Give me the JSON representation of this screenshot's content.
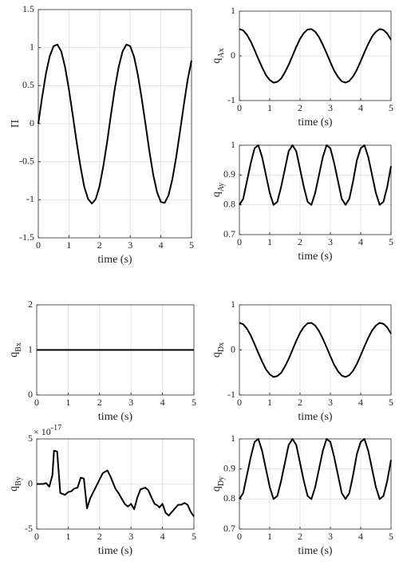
{
  "chart_data": [
    {
      "type": "line",
      "ylabel": "Π",
      "xlabel": "time (s)",
      "color": "#000000",
      "grid": true,
      "xlim": [
        0,
        5
      ],
      "ylim": [
        -1.5,
        1.5
      ],
      "xticks": [
        0,
        1,
        2,
        3,
        4,
        5
      ],
      "yticks": [
        -1.5,
        -1,
        -0.5,
        0,
        0.5,
        1,
        1.5
      ],
      "x": [
        0,
        0.125,
        0.25,
        0.375,
        0.5,
        0.625,
        0.75,
        0.875,
        1,
        1.125,
        1.25,
        1.375,
        1.5,
        1.625,
        1.75,
        1.875,
        2,
        2.125,
        2.25,
        2.375,
        2.5,
        2.625,
        2.75,
        2.875,
        3,
        3.125,
        3.25,
        3.375,
        3.5,
        3.625,
        3.75,
        3.875,
        4,
        4.125,
        4.25,
        4.375,
        4.5,
        4.625,
        4.75,
        4.875,
        5
      ],
      "values": [
        0,
        0.35,
        0.66,
        0.89,
        1.02,
        1.04,
        0.95,
        0.74,
        0.45,
        0.11,
        -0.24,
        -0.56,
        -0.83,
        -0.99,
        -1.05,
        -0.99,
        -0.82,
        -0.55,
        -0.23,
        0.13,
        0.47,
        0.75,
        0.95,
        1.04,
        1.02,
        0.88,
        0.64,
        0.33,
        -0.01,
        -0.36,
        -0.67,
        -0.9,
        -1.03,
        -1.04,
        -0.94,
        -0.73,
        -0.44,
        -0.1,
        0.25,
        0.58,
        0.83
      ]
    },
    {
      "type": "line",
      "ylabel": "q",
      "ylabel_sub": "Ax",
      "xlabel": "time (s)",
      "color": "#000000",
      "grid": true,
      "xlim": [
        0,
        5
      ],
      "ylim": [
        -1,
        1
      ],
      "xticks": [
        0,
        1,
        2,
        3,
        4,
        5
      ],
      "yticks": [
        -1,
        0,
        1
      ],
      "x": [
        0,
        0.125,
        0.25,
        0.375,
        0.5,
        0.625,
        0.75,
        0.875,
        1,
        1.125,
        1.25,
        1.375,
        1.5,
        1.625,
        1.75,
        1.875,
        2,
        2.125,
        2.25,
        2.375,
        2.5,
        2.625,
        2.75,
        2.875,
        3,
        3.125,
        3.25,
        3.375,
        3.5,
        3.625,
        3.75,
        3.875,
        4,
        4.125,
        4.25,
        4.375,
        4.5,
        4.625,
        4.75,
        4.875,
        5
      ],
      "values": [
        0.6,
        0.57,
        0.47,
        0.32,
        0.13,
        -0.07,
        -0.26,
        -0.43,
        -0.54,
        -0.6,
        -0.58,
        -0.51,
        -0.37,
        -0.2,
        0,
        0.2,
        0.38,
        0.51,
        0.59,
        0.6,
        0.54,
        0.42,
        0.25,
        0.06,
        -0.14,
        -0.33,
        -0.47,
        -0.57,
        -0.6,
        -0.56,
        -0.46,
        -0.31,
        -0.12,
        0.08,
        0.27,
        0.43,
        0.54,
        0.6,
        0.58,
        0.5,
        0.36
      ]
    },
    {
      "type": "line",
      "ylabel": "q",
      "ylabel_sub": "Ay",
      "xlabel": "time (s)",
      "color": "#000000",
      "grid": true,
      "xlim": [
        0,
        5
      ],
      "ylim": [
        0.7,
        1
      ],
      "xticks": [
        0,
        1,
        2,
        3,
        4,
        5
      ],
      "yticks": [
        0.7,
        0.8,
        0.9,
        1
      ],
      "x": [
        0,
        0.125,
        0.25,
        0.375,
        0.5,
        0.625,
        0.75,
        0.875,
        1,
        1.125,
        1.25,
        1.375,
        1.5,
        1.625,
        1.75,
        1.875,
        2,
        2.125,
        2.25,
        2.375,
        2.5,
        2.625,
        2.75,
        2.875,
        3,
        3.125,
        3.25,
        3.375,
        3.5,
        3.625,
        3.75,
        3.875,
        4,
        4.125,
        4.25,
        4.375,
        4.5,
        4.625,
        4.75,
        4.875,
        5
      ],
      "values": [
        0.8,
        0.82,
        0.88,
        0.94,
        0.99,
        1,
        0.96,
        0.9,
        0.84,
        0.8,
        0.81,
        0.86,
        0.92,
        0.98,
        1,
        0.98,
        0.92,
        0.86,
        0.81,
        0.8,
        0.84,
        0.9,
        0.96,
        1,
        0.99,
        0.94,
        0.88,
        0.82,
        0.8,
        0.82,
        0.88,
        0.95,
        0.99,
        1,
        0.96,
        0.9,
        0.84,
        0.8,
        0.81,
        0.86,
        0.93
      ]
    },
    {
      "type": "line",
      "ylabel": "q",
      "ylabel_sub": "Bx",
      "xlabel": "time (s)",
      "color": "#000000",
      "grid": true,
      "xlim": [
        0,
        5
      ],
      "ylim": [
        0,
        2
      ],
      "xticks": [
        0,
        1,
        2,
        3,
        4,
        5
      ],
      "yticks": [
        0,
        1,
        2
      ],
      "x": [
        0,
        5
      ],
      "values": [
        1,
        1
      ]
    },
    {
      "type": "line",
      "ylabel": "q",
      "ylabel_sub": "By",
      "xlabel": "time (s)",
      "color": "#000000",
      "grid": true,
      "y_multiplier": {
        "base": "× 10",
        "exponent": "-17"
      },
      "xlim": [
        0,
        5
      ],
      "ylim": [
        -5,
        5
      ],
      "xticks": [
        0,
        1,
        2,
        3,
        4,
        5
      ],
      "yticks": [
        -5,
        0,
        5
      ],
      "x": [
        0,
        0.2,
        0.3,
        0.4,
        0.5,
        0.55,
        0.65,
        0.75,
        0.9,
        1,
        1.1,
        1.2,
        1.3,
        1.4,
        1.5,
        1.6,
        1.7,
        1.9,
        2,
        2.1,
        2.25,
        2.35,
        2.5,
        2.6,
        2.7,
        2.8,
        2.9,
        3,
        3.1,
        3.2,
        3.3,
        3.45,
        3.55,
        3.65,
        3.75,
        3.85,
        3.9,
        4,
        4.1,
        4.2,
        4.3,
        4.4,
        4.5,
        4.6,
        4.7,
        4.8,
        4.9,
        5
      ],
      "values": [
        0,
        0,
        0.1,
        -0.3,
        1,
        3.7,
        3.6,
        -1,
        -1.2,
        -0.9,
        -0.8,
        -0.5,
        -0.4,
        0.7,
        0.6,
        -2.7,
        -1.6,
        -0.2,
        0.5,
        1.2,
        1.5,
        0.8,
        -0.5,
        -1,
        -1.6,
        -2.2,
        -2.5,
        -2.2,
        -2.8,
        -1.5,
        -0.6,
        -0.4,
        -0.7,
        -1.5,
        -2.2,
        -2.4,
        -2.6,
        -2.2,
        -3.2,
        -3.5,
        -3.1,
        -2.7,
        -2.3,
        -2.3,
        -2.1,
        -2.3,
        -3.1,
        -3.6
      ]
    },
    {
      "type": "line",
      "ylabel": "q",
      "ylabel_sub": "Dx",
      "xlabel": "time (s)",
      "color": "#000000",
      "grid": true,
      "xlim": [
        0,
        5
      ],
      "ylim": [
        -1,
        1
      ],
      "xticks": [
        0,
        1,
        2,
        3,
        4,
        5
      ],
      "yticks": [
        -1,
        0,
        1
      ],
      "x": [
        0,
        0.125,
        0.25,
        0.375,
        0.5,
        0.625,
        0.75,
        0.875,
        1,
        1.125,
        1.25,
        1.375,
        1.5,
        1.625,
        1.75,
        1.875,
        2,
        2.125,
        2.25,
        2.375,
        2.5,
        2.625,
        2.75,
        2.875,
        3,
        3.125,
        3.25,
        3.375,
        3.5,
        3.625,
        3.75,
        3.875,
        4,
        4.125,
        4.25,
        4.375,
        4.5,
        4.625,
        4.75,
        4.875,
        5
      ],
      "values": [
        0.6,
        0.57,
        0.47,
        0.32,
        0.13,
        -0.07,
        -0.26,
        -0.43,
        -0.54,
        -0.6,
        -0.58,
        -0.51,
        -0.37,
        -0.2,
        0,
        0.2,
        0.38,
        0.51,
        0.59,
        0.6,
        0.54,
        0.42,
        0.25,
        0.06,
        -0.14,
        -0.33,
        -0.47,
        -0.57,
        -0.6,
        -0.56,
        -0.46,
        -0.31,
        -0.12,
        0.08,
        0.27,
        0.43,
        0.54,
        0.6,
        0.58,
        0.5,
        0.36
      ]
    },
    {
      "type": "line",
      "ylabel": "q",
      "ylabel_sub": "Dy",
      "xlabel": "time (s)",
      "color": "#000000",
      "grid": true,
      "xlim": [
        0,
        5
      ],
      "ylim": [
        0.7,
        1
      ],
      "xticks": [
        0,
        1,
        2,
        3,
        4,
        5
      ],
      "yticks": [
        0.7,
        0.8,
        0.9,
        1
      ],
      "x": [
        0,
        0.125,
        0.25,
        0.375,
        0.5,
        0.625,
        0.75,
        0.875,
        1,
        1.125,
        1.25,
        1.375,
        1.5,
        1.625,
        1.75,
        1.875,
        2,
        2.125,
        2.25,
        2.375,
        2.5,
        2.625,
        2.75,
        2.875,
        3,
        3.125,
        3.25,
        3.375,
        3.5,
        3.625,
        3.75,
        3.875,
        4,
        4.125,
        4.25,
        4.375,
        4.5,
        4.625,
        4.75,
        4.875,
        5
      ],
      "values": [
        0.8,
        0.82,
        0.88,
        0.94,
        0.99,
        1,
        0.96,
        0.9,
        0.84,
        0.8,
        0.81,
        0.86,
        0.92,
        0.98,
        1,
        0.98,
        0.92,
        0.86,
        0.81,
        0.8,
        0.84,
        0.9,
        0.96,
        1,
        0.99,
        0.94,
        0.88,
        0.82,
        0.8,
        0.82,
        0.88,
        0.95,
        0.99,
        1,
        0.96,
        0.9,
        0.84,
        0.8,
        0.81,
        0.86,
        0.93
      ]
    }
  ]
}
